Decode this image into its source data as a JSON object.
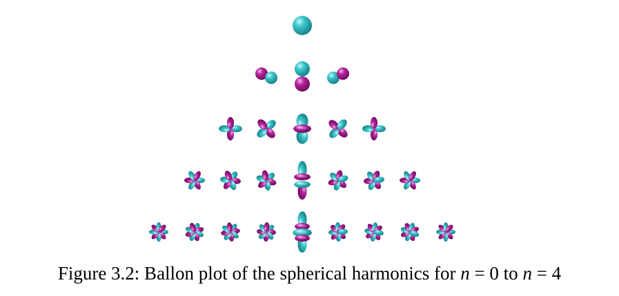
{
  "figure": {
    "rows": [
      {
        "n": 0,
        "count": 1
      },
      {
        "n": 1,
        "count": 3
      },
      {
        "n": 2,
        "count": 5
      },
      {
        "n": 3,
        "count": 7
      },
      {
        "n": 4,
        "count": 9
      }
    ],
    "colors": {
      "positive": "#2ab8c0",
      "negative": "#b0209a"
    }
  },
  "caption": {
    "prefix": "Figure 3.2: Ballon plot of the spherical harmonics for ",
    "var1": "n",
    "eq1": " = 0",
    "mid": " to ",
    "var2": "n",
    "eq2": " = 4"
  }
}
